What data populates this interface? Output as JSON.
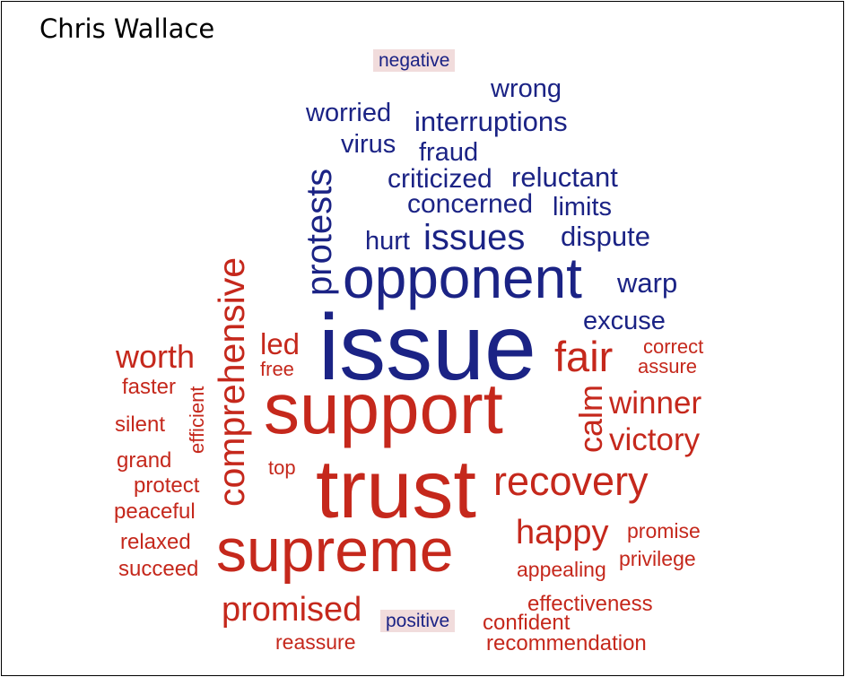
{
  "title": "Chris Wallace",
  "colors": {
    "negative": "#1b2385",
    "positive": "#c5281c",
    "tag_bg": "#f1dcdc"
  },
  "legend": {
    "negative": "negative",
    "positive": "positive"
  },
  "negative_words": {
    "wrong": "wrong",
    "worried": "worried",
    "interruptions": "interruptions",
    "virus": "virus",
    "fraud": "fraud",
    "criticized": "criticized",
    "reluctant": "reluctant",
    "concerned": "concerned",
    "limits": "limits",
    "protests": "protests",
    "hurt": "hurt",
    "issues": "issues",
    "dispute": "dispute",
    "opponent": "opponent",
    "warp": "warp",
    "excuse": "excuse",
    "issue": "issue"
  },
  "positive_words": {
    "comprehensive": "comprehensive",
    "led": "led",
    "free": "free",
    "fair": "fair",
    "correct": "correct",
    "assure": "assure",
    "worth": "worth",
    "faster": "faster",
    "efficient": "efficient",
    "support": "support",
    "calm": "calm",
    "winner": "winner",
    "victory": "victory",
    "silent": "silent",
    "grand": "grand",
    "top": "top",
    "protect": "protect",
    "trust": "trust",
    "recovery": "recovery",
    "peaceful": "peaceful",
    "happy": "happy",
    "promise": "promise",
    "relaxed": "relaxed",
    "supreme": "supreme",
    "privilege": "privilege",
    "succeed": "succeed",
    "appealing": "appealing",
    "effectiveness": "effectiveness",
    "promised": "promised",
    "confident": "confident",
    "reassure": "reassure",
    "recommendation": "recommendation"
  }
}
